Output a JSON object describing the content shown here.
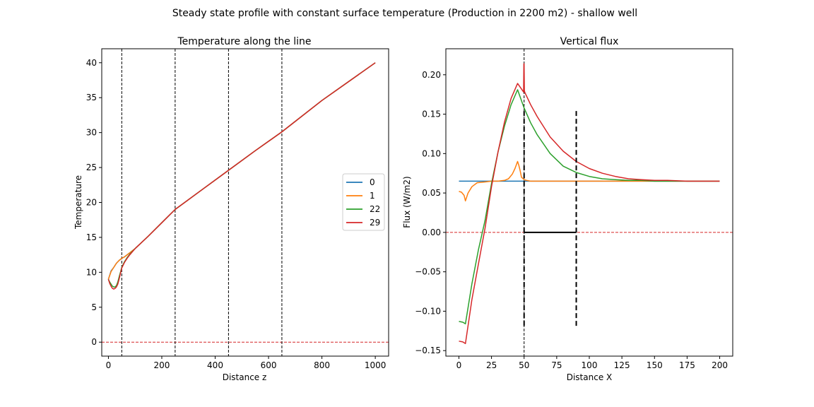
{
  "suptitle": "Steady state profile with constant surface temperature (Production in 2200 m2) - shallow well",
  "colors": {
    "series": [
      "#1f77b4",
      "#ff7f0e",
      "#2ca02c",
      "#d62728"
    ],
    "zero_line": "#d62728",
    "reference_lines": "#000000"
  },
  "chart_data": [
    {
      "type": "line",
      "title": "Temperature along the line",
      "xlabel": "Distance z",
      "ylabel": "Temperature",
      "xlim": [
        -25,
        1050
      ],
      "ylim": [
        -2,
        42
      ],
      "xticks": [
        0,
        200,
        400,
        600,
        800,
        1000
      ],
      "yticks": [
        0,
        5,
        10,
        15,
        20,
        25,
        30,
        35,
        40
      ],
      "legend": {
        "placement": "center-right",
        "entries": [
          "0",
          "1",
          "22",
          "29"
        ]
      },
      "grid": false,
      "reference_vlines": [
        50,
        250,
        450,
        650
      ],
      "reference_hline": 0,
      "series": [
        {
          "name": "0",
          "color": "#1f77b4",
          "x": [
            0,
            10,
            20,
            30,
            40,
            50,
            60,
            70,
            80,
            100,
            150,
            200,
            250,
            350,
            450,
            550,
            650,
            800,
            1000
          ],
          "y": [
            9.0,
            10.2,
            10.7,
            11.3,
            11.7,
            12.0,
            12.2,
            12.5,
            12.8,
            13.4,
            15.2,
            17.1,
            19.0,
            21.8,
            24.6,
            27.4,
            30.1,
            34.6,
            40.0
          ]
        },
        {
          "name": "1",
          "color": "#ff7f0e",
          "x": [
            0,
            10,
            20,
            30,
            40,
            50,
            60,
            70,
            80,
            100,
            150,
            200,
            250,
            350,
            450,
            550,
            650,
            800,
            1000
          ],
          "y": [
            9.0,
            10.1,
            10.7,
            11.3,
            11.7,
            12.0,
            12.2,
            12.5,
            12.8,
            13.4,
            15.2,
            17.1,
            19.0,
            21.8,
            24.6,
            27.4,
            30.1,
            34.6,
            40.0
          ]
        },
        {
          "name": "22",
          "color": "#2ca02c",
          "x": [
            0,
            5,
            10,
            15,
            20,
            25,
            30,
            35,
            40,
            45,
            50,
            60,
            70,
            80,
            100,
            150,
            200,
            250,
            350,
            450,
            550,
            650,
            800,
            1000
          ],
          "y": [
            9.0,
            8.6,
            8.3,
            8.0,
            7.9,
            7.9,
            8.1,
            8.6,
            9.3,
            10.0,
            10.7,
            11.5,
            12.1,
            12.6,
            13.4,
            15.2,
            17.1,
            19.0,
            21.8,
            24.6,
            27.4,
            30.1,
            34.6,
            40.0
          ]
        },
        {
          "name": "29",
          "color": "#d62728",
          "x": [
            0,
            5,
            10,
            15,
            20,
            25,
            30,
            35,
            40,
            45,
            50,
            60,
            70,
            80,
            100,
            150,
            200,
            250,
            350,
            450,
            550,
            650,
            800,
            1000
          ],
          "y": [
            9.0,
            8.4,
            8.0,
            7.7,
            7.6,
            7.7,
            7.9,
            8.3,
            9.0,
            9.8,
            10.6,
            11.4,
            12.0,
            12.5,
            13.4,
            15.2,
            17.1,
            19.0,
            21.8,
            24.6,
            27.4,
            30.1,
            34.6,
            40.0
          ]
        }
      ]
    },
    {
      "type": "line",
      "title": "Vertical flux",
      "xlabel": "Distance X",
      "ylabel": "Flux (W/m2)",
      "xlim": [
        -10,
        210
      ],
      "ylim": [
        -0.157,
        0.233
      ],
      "xticks": [
        0,
        25,
        50,
        75,
        100,
        125,
        150,
        175,
        200
      ],
      "yticks": [
        -0.15,
        -0.1,
        -0.05,
        0.0,
        0.05,
        0.1,
        0.15,
        0.2
      ],
      "ytick_labels": [
        "−0.15",
        "−0.10",
        "−0.05",
        "0.00",
        "0.05",
        "0.10",
        "0.15",
        "0.20"
      ],
      "grid": false,
      "reference_vline": 50,
      "reference_hline": 0,
      "well": {
        "x": [
          50,
          90
        ],
        "y_top": 0.154,
        "y_bottom": -0.12,
        "bottom": 0
      },
      "series": [
        {
          "name": "0",
          "color": "#1f77b4",
          "x": [
            0,
            50,
            100,
            150,
            200
          ],
          "y": [
            0.065,
            0.065,
            0.065,
            0.065,
            0.065
          ]
        },
        {
          "name": "1",
          "color": "#ff7f0e",
          "x": [
            0,
            2,
            4,
            5,
            7,
            10,
            14,
            20,
            25,
            30,
            35,
            38,
            41,
            43,
            45,
            46,
            47,
            48,
            50,
            52,
            55,
            60,
            80,
            100,
            150,
            200
          ],
          "y": [
            0.052,
            0.051,
            0.047,
            0.04,
            0.05,
            0.058,
            0.063,
            0.064,
            0.065,
            0.065,
            0.066,
            0.068,
            0.074,
            0.081,
            0.09,
            0.085,
            0.078,
            0.07,
            0.067,
            0.066,
            0.065,
            0.065,
            0.065,
            0.065,
            0.065,
            0.065
          ]
        },
        {
          "name": "22",
          "color": "#2ca02c",
          "x": [
            0,
            3,
            5,
            10,
            15,
            20,
            25,
            30,
            35,
            40,
            45,
            50,
            55,
            60,
            70,
            80,
            90,
            100,
            110,
            120,
            130,
            140,
            150,
            160,
            175,
            200
          ],
          "y": [
            -0.113,
            -0.114,
            -0.116,
            -0.065,
            -0.022,
            0.015,
            0.062,
            0.102,
            0.135,
            0.162,
            0.181,
            0.158,
            0.139,
            0.124,
            0.1,
            0.084,
            0.076,
            0.071,
            0.068,
            0.067,
            0.066,
            0.066,
            0.065,
            0.065,
            0.065,
            0.065
          ]
        },
        {
          "name": "29",
          "color": "#d62728",
          "x": [
            0,
            3,
            5,
            10,
            15,
            20,
            25,
            30,
            35,
            40,
            45,
            48,
            49.6,
            49.8,
            50,
            50.2,
            50.5,
            51,
            55,
            60,
            70,
            80,
            90,
            100,
            110,
            120,
            130,
            140,
            150,
            160,
            175,
            200
          ],
          "y": [
            -0.138,
            -0.139,
            -0.141,
            -0.085,
            -0.04,
            0.005,
            0.058,
            0.102,
            0.14,
            0.17,
            0.189,
            0.182,
            0.178,
            0.214,
            0.214,
            0.18,
            0.178,
            0.176,
            0.162,
            0.147,
            0.121,
            0.103,
            0.09,
            0.081,
            0.075,
            0.071,
            0.068,
            0.067,
            0.066,
            0.066,
            0.065,
            0.065
          ]
        }
      ]
    }
  ]
}
